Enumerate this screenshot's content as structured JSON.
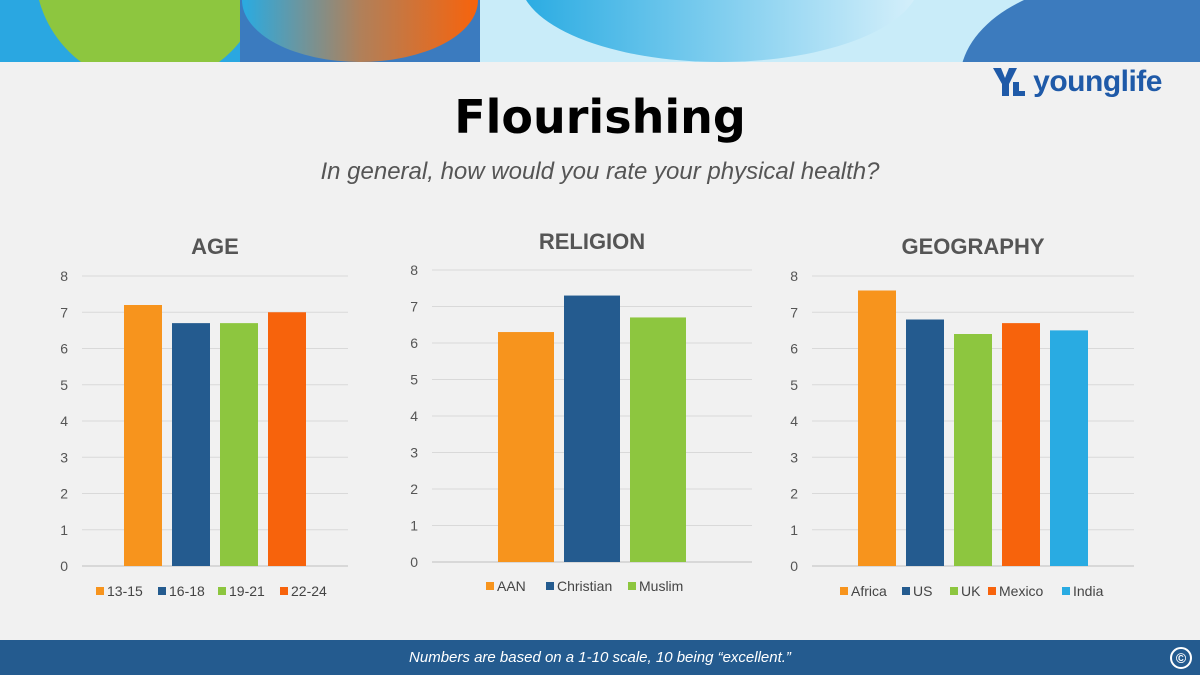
{
  "header": {
    "logo_text": "younglife",
    "title": "Flourishing",
    "subtitle": "In general, how would you rate your physical health?"
  },
  "footer": {
    "note": "Numbers are based on a 1-10 scale, 10 being “excellent.”",
    "copyright_symbol": "©"
  },
  "colors": {
    "orange": "#f7941d",
    "dark_blue": "#245b8f",
    "green": "#8dc63f",
    "red_orange": "#f7630c",
    "light_blue": "#29abe2",
    "footer_bg": "#245b8f"
  },
  "chart_data": [
    {
      "type": "bar",
      "title": "AGE",
      "categories": [
        "13-15",
        "16-18",
        "19-21",
        "22-24"
      ],
      "values": [
        7.2,
        6.7,
        6.7,
        7.0
      ],
      "colors": [
        "#f7941d",
        "#245b8f",
        "#8dc63f",
        "#f7630c"
      ],
      "ylim": [
        0,
        8
      ],
      "yticks": [
        0,
        1,
        2,
        3,
        4,
        5,
        6,
        7,
        8
      ],
      "grid": true,
      "legend": "bottom"
    },
    {
      "type": "bar",
      "title": "RELIGION",
      "categories": [
        "AAN",
        "Christian",
        "Muslim"
      ],
      "values": [
        6.3,
        7.3,
        6.7
      ],
      "colors": [
        "#f7941d",
        "#245b8f",
        "#8dc63f"
      ],
      "ylim": [
        0,
        8
      ],
      "yticks": [
        0,
        1,
        2,
        3,
        4,
        5,
        6,
        7,
        8
      ],
      "grid": true,
      "legend": "bottom"
    },
    {
      "type": "bar",
      "title": "GEOGRAPHY",
      "categories": [
        "Africa",
        "US",
        "UK",
        "Mexico",
        "India"
      ],
      "values": [
        7.6,
        6.8,
        6.4,
        6.7,
        6.5
      ],
      "colors": [
        "#f7941d",
        "#245b8f",
        "#8dc63f",
        "#f7630c",
        "#29abe2"
      ],
      "ylim": [
        0,
        8
      ],
      "yticks": [
        0,
        1,
        2,
        3,
        4,
        5,
        6,
        7,
        8
      ],
      "grid": true,
      "legend": "bottom"
    }
  ]
}
